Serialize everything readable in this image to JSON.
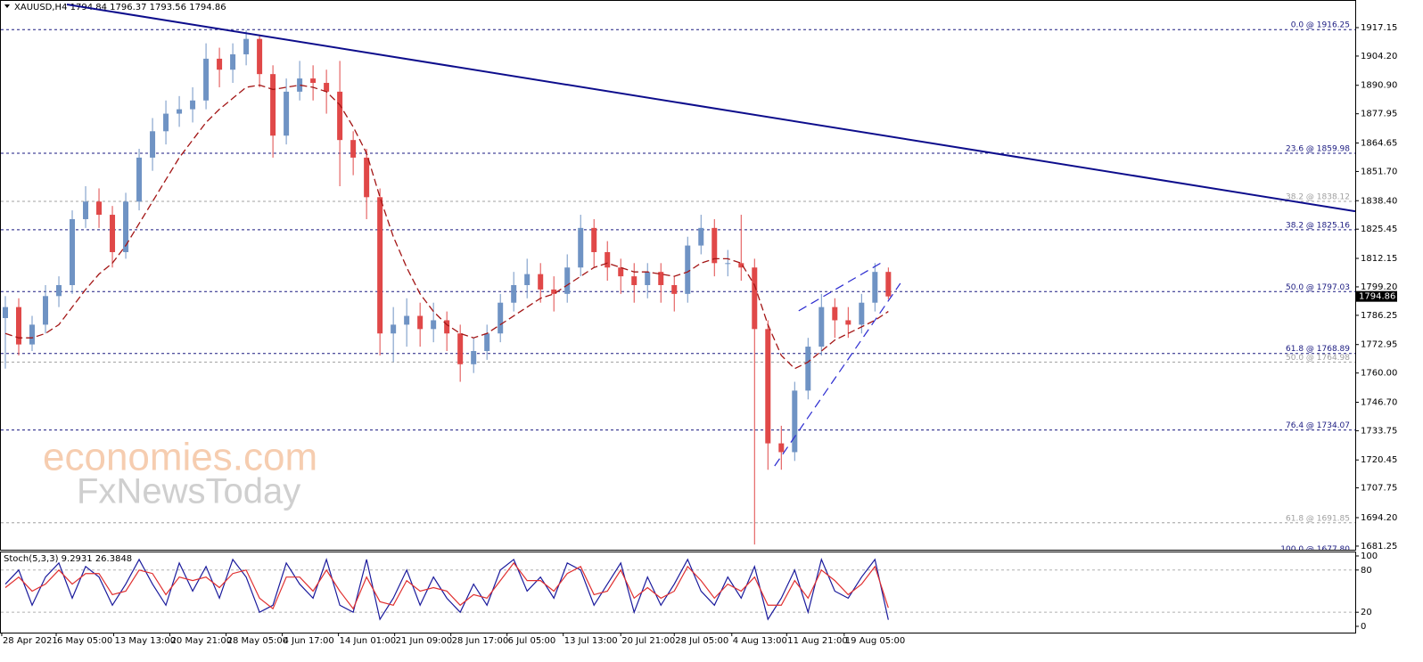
{
  "chart_data": [
    {
      "type": "candlestick",
      "title": "XAUUSD,H4  1794.84 1796.37 1793.56 1794.86",
      "up_color": "#6f93c4",
      "down_color": "#e04848",
      "open": [
        1785,
        1790,
        1773,
        1782,
        1795,
        1800,
        1830,
        1838,
        1832,
        1815,
        1838,
        1858,
        1870,
        1878,
        1880,
        1884,
        1903,
        1898,
        1905,
        1912,
        1896,
        1868,
        1888,
        1894,
        1892,
        1888,
        1866,
        1858,
        1840,
        1778,
        1782,
        1786,
        1780,
        1784,
        1778,
        1764,
        1770,
        1778,
        1792,
        1800,
        1805,
        1798,
        1796,
        1808,
        1826,
        1815,
        1808,
        1804,
        1800,
        1806,
        1800,
        1796,
        1818,
        1826,
        1810,
        1810,
        1808,
        1780,
        1728,
        1724,
        1752,
        1772,
        1790,
        1784,
        1782,
        1792,
        1806
      ],
      "high": [
        1795,
        1794,
        1786,
        1800,
        1804,
        1834,
        1845,
        1844,
        1836,
        1842,
        1862,
        1876,
        1884,
        1886,
        1890,
        1910,
        1908,
        1910,
        1916,
        1914,
        1900,
        1894,
        1902,
        1900,
        1898,
        1902,
        1870,
        1862,
        1844,
        1790,
        1794,
        1792,
        1792,
        1788,
        1782,
        1776,
        1782,
        1796,
        1806,
        1812,
        1810,
        1804,
        1814,
        1832,
        1830,
        1820,
        1812,
        1810,
        1810,
        1810,
        1804,
        1822,
        1832,
        1830,
        1816,
        1832,
        1812,
        1784,
        1736,
        1756,
        1776,
        1796,
        1794,
        1790,
        1796,
        1810,
        1808
      ],
      "low": [
        1762,
        1768,
        1770,
        1778,
        1790,
        1796,
        1826,
        1826,
        1808,
        1812,
        1834,
        1852,
        1864,
        1872,
        1874,
        1880,
        1890,
        1892,
        1900,
        1890,
        1858,
        1864,
        1884,
        1884,
        1878,
        1845,
        1850,
        1830,
        1768,
        1765,
        1772,
        1772,
        1774,
        1770,
        1756,
        1760,
        1766,
        1774,
        1788,
        1794,
        1792,
        1788,
        1792,
        1804,
        1808,
        1802,
        1796,
        1792,
        1794,
        1792,
        1788,
        1792,
        1814,
        1804,
        1804,
        1802,
        1682,
        1716,
        1716,
        1720,
        1748,
        1768,
        1776,
        1776,
        1778,
        1788,
        1793.56
      ],
      "close": [
        1790,
        1773,
        1782,
        1795,
        1800,
        1830,
        1838,
        1832,
        1815,
        1838,
        1858,
        1870,
        1878,
        1880,
        1884,
        1903,
        1898,
        1905,
        1912,
        1896,
        1868,
        1888,
        1894,
        1892,
        1888,
        1866,
        1858,
        1840,
        1778,
        1782,
        1786,
        1780,
        1784,
        1778,
        1764,
        1770,
        1778,
        1792,
        1800,
        1805,
        1798,
        1796,
        1808,
        1826,
        1815,
        1808,
        1804,
        1800,
        1806,
        1800,
        1796,
        1818,
        1826,
        1810,
        1810,
        1808,
        1780,
        1728,
        1724,
        1752,
        1772,
        1790,
        1784,
        1782,
        1792,
        1806,
        1794.86
      ],
      "ma": {
        "color": "#a31515",
        "values": [
          1778,
          1776,
          1776,
          1778,
          1782,
          1790,
          1798,
          1805,
          1810,
          1818,
          1828,
          1838,
          1848,
          1858,
          1866,
          1874,
          1880,
          1885,
          1890,
          1891,
          1889,
          1890,
          1891,
          1890,
          1888,
          1882,
          1872,
          1860,
          1840,
          1822,
          1808,
          1796,
          1788,
          1782,
          1778,
          1776,
          1778,
          1782,
          1786,
          1790,
          1794,
          1796,
          1800,
          1804,
          1808,
          1810,
          1808,
          1806,
          1806,
          1805,
          1804,
          1806,
          1810,
          1812,
          1812,
          1810,
          1800,
          1782,
          1768,
          1762,
          1765,
          1770,
          1775,
          1778,
          1781,
          1784,
          1788
        ]
      },
      "xlim": [
        -0.4,
        100.9
      ],
      "ylim": [
        1679.6,
        1928.9
      ],
      "yticks": [
        1917.15,
        {
          "value": 1904.2,
          "label": "1904.20"
        },
        {
          "value": 1890.9,
          "label": "1890.90"
        },
        1877.95,
        1864.65,
        {
          "value": 1851.7,
          "label": "1851.70"
        },
        {
          "value": 1838.4,
          "label": "1838.40"
        },
        1825.45,
        1812.15,
        {
          "value": 1799.2,
          "label": "1799.20"
        },
        1786.25,
        1772.95,
        {
          "value": 1760,
          "label": "1760.00"
        },
        {
          "value": 1746.7,
          "label": "1746.70"
        },
        1733.75,
        1720.45,
        1707.75,
        {
          "value": 1694.2,
          "label": "1694.20"
        },
        1681.25
      ],
      "levels": [
        {
          "label": "0.0 @ 1916.25",
          "value": 1916.25,
          "color": "#1a1a80"
        },
        {
          "label": "23.6 @ 1859.98",
          "value": 1859.98,
          "color": "#1a1a80"
        },
        {
          "label": "38.2 @ 1838.12",
          "value": 1838.12,
          "color": "#a0a0a0"
        },
        {
          "label": "38.2 @ 1825.16",
          "value": 1825.16,
          "color": "#1a1a80"
        },
        {
          "label": "50.0 @ 1797.03",
          "value": 1797.03,
          "color": "#1a1a80"
        },
        {
          "label": "61.8 @ 1768.89",
          "value": 1768.89,
          "color": "#1a1a80"
        },
        {
          "label": "50.0 @ 1764.98",
          "value": 1764.98,
          "color": "#a0a0a0"
        },
        {
          "label": "76.4 @ 1734.07",
          "value": 1734.07,
          "color": "#1a1a80"
        },
        {
          "label": "61.8 @ 1691.85",
          "value": 1691.85,
          "color": "#a0a0a0"
        },
        {
          "label": "100.0 @ 1677.80",
          "value": 1677.8,
          "color": "#1a1a80"
        }
      ],
      "trendlines": [
        {
          "x": [
            4.6,
            100.9
          ],
          "y": [
            1927.7,
            1833.6
          ],
          "color": "#0d0d8c",
          "dashed": false
        },
        {
          "x": [
            59.3,
            65.6
          ],
          "y": [
            1788.3,
            1810.6
          ],
          "color": "#2b2bd0",
          "dashed": true
        },
        {
          "x": [
            57.5,
            66.9
          ],
          "y": [
            1717.7,
            1800.8
          ],
          "color": "#2b2bd0",
          "dashed": true
        }
      ],
      "last_price": 1794.86,
      "watermark": [
        "economies.com",
        "FxNewsToday"
      ]
    },
    {
      "type": "line",
      "title": "Stoch(5,3,3) 9.2931 26.3848",
      "series": [
        {
          "color": "#1a1a9c",
          "values": [
            60,
            80,
            30,
            70,
            90,
            40,
            85,
            70,
            30,
            60,
            95,
            60,
            30,
            90,
            50,
            85,
            40,
            95,
            70,
            20,
            30,
            90,
            60,
            40,
            95,
            30,
            20,
            95,
            10,
            40,
            80,
            30,
            70,
            40,
            20,
            60,
            30,
            80,
            95,
            50,
            70,
            40,
            90,
            80,
            30,
            60,
            90,
            20,
            70,
            30,
            60,
            95,
            50,
            30,
            70,
            40,
            85,
            10,
            40,
            80,
            20,
            95,
            50,
            40,
            70,
            95,
            9.29
          ]
        },
        {
          "color": "#e03030",
          "values": [
            55,
            70,
            50,
            60,
            80,
            60,
            75,
            75,
            45,
            50,
            80,
            75,
            45,
            70,
            65,
            70,
            55,
            75,
            80,
            40,
            25,
            70,
            70,
            50,
            80,
            50,
            25,
            70,
            35,
            30,
            65,
            50,
            55,
            50,
            30,
            45,
            40,
            65,
            90,
            65,
            65,
            50,
            75,
            85,
            45,
            50,
            80,
            40,
            55,
            40,
            50,
            85,
            65,
            40,
            60,
            50,
            70,
            30,
            30,
            65,
            40,
            80,
            65,
            45,
            60,
            85,
            26.38
          ]
        }
      ],
      "xlim": [
        -0.4,
        100.9
      ],
      "ylim": [
        -8.9,
        106.3
      ],
      "yticks": [
        0,
        20,
        80,
        100
      ],
      "xticks": [
        {
          "value": -0.27,
          "label": "28 Apr 2021"
        },
        {
          "value": 3.8,
          "label": "6 May 05:00"
        },
        {
          "value": 8.1,
          "label": "13 May 13:00"
        },
        {
          "value": 12.3,
          "label": "20 May 21:00"
        },
        {
          "value": 16.5,
          "label": "28 May 05:00"
        },
        {
          "value": 20.7,
          "label": "4 Jun 17:00"
        },
        {
          "value": 24.9,
          "label": "14 Jun 01:00"
        },
        {
          "value": 29.1,
          "label": "21 Jun 09:00"
        },
        {
          "value": 33.3,
          "label": "28 Jun 17:00"
        },
        {
          "value": 37.5,
          "label": "6 Jul 05:00"
        },
        {
          "value": 41.7,
          "label": "13 Jul 13:00"
        },
        {
          "value": 46,
          "label": "20 Jul 21:00"
        },
        {
          "value": 50,
          "label": "28 Jul 05:00"
        },
        {
          "value": 54.3,
          "label": "4 Aug 13:00"
        },
        {
          "value": 58.4,
          "label": "11 Aug 21:00"
        },
        {
          "value": 62.7,
          "label": "19 Aug 05:00"
        }
      ]
    }
  ]
}
